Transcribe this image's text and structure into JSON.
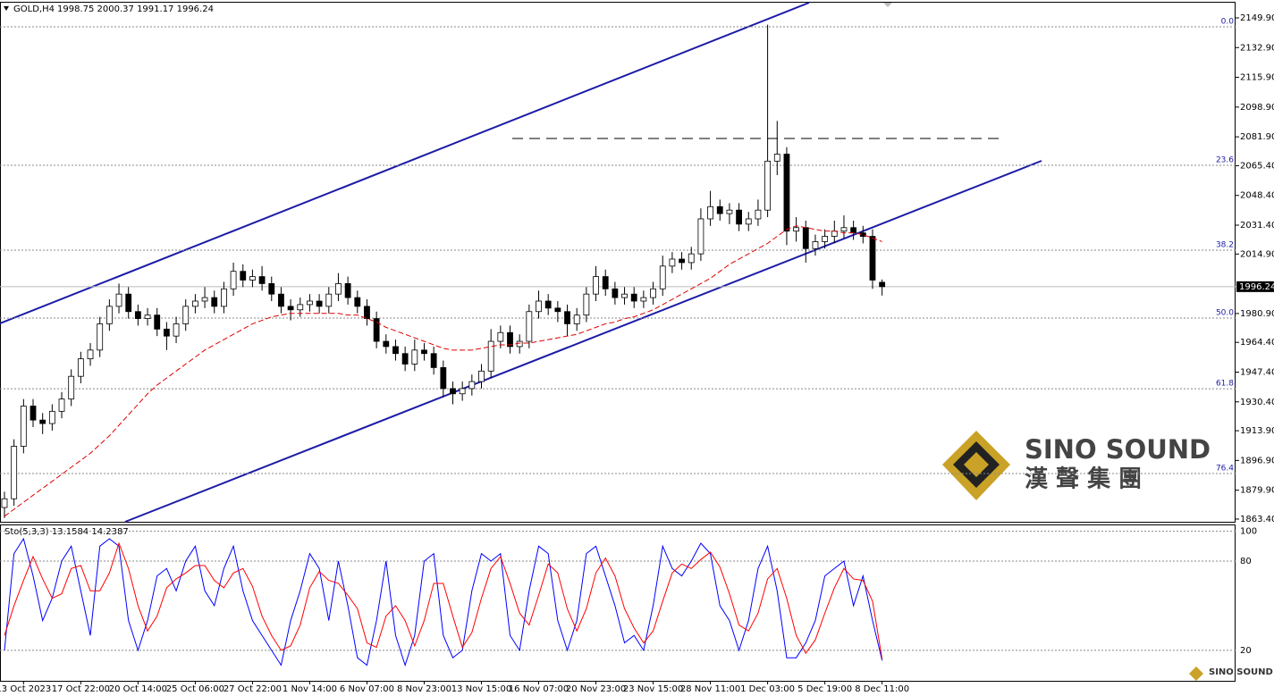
{
  "chart_data": [
    {
      "type": "candlestick",
      "title": "GOLD,H4",
      "subtitle": "1998.75 2000.37 1991.17 1996.24",
      "categories": [
        null,
        null,
        "13 Oct 2023",
        null,
        null,
        null,
        null,
        null,
        "17 Oct 22:00",
        null,
        null,
        null,
        null,
        null,
        "20 Oct 14:00",
        null,
        null,
        null,
        null,
        null,
        "25 Oct 06:00",
        null,
        null,
        null,
        null,
        null,
        "27 Oct 22:00",
        null,
        null,
        null,
        null,
        null,
        "1 Nov 14:00",
        null,
        null,
        null,
        null,
        null,
        "6 Nov 07:00",
        null,
        null,
        null,
        null,
        null,
        "8 Nov 23:00",
        null,
        null,
        null,
        null,
        null,
        "13 Nov 15:00",
        null,
        null,
        null,
        null,
        null,
        "16 Nov 07:00",
        null,
        null,
        null,
        null,
        null,
        "20 Nov 23:00",
        null,
        null,
        null,
        null,
        null,
        "23 Nov 15:00",
        null,
        null,
        null,
        null,
        null,
        "28 Nov 11:00",
        null,
        null,
        null,
        null,
        null,
        "1 Dec 03:00",
        null,
        null,
        null,
        null,
        null,
        "5 Dec 19:00",
        null,
        null,
        null,
        null,
        null,
        "8 Dec 11:00"
      ],
      "open": [
        1870,
        1875,
        1905,
        1928,
        1920,
        1918,
        1925,
        1932,
        1945,
        1955,
        1960,
        1975,
        1985,
        1992,
        1982,
        1978,
        1980,
        1972,
        1968,
        1975,
        1985,
        1988,
        1990,
        1985,
        1995,
        2005,
        2000,
        2002,
        1998,
        1992,
        1985,
        1983,
        1986,
        1988,
        1985,
        1992,
        1998,
        1990,
        1985,
        1978,
        1965,
        1962,
        1958,
        1952,
        1960,
        1958,
        1950,
        1938,
        1935,
        1938,
        1942,
        1948,
        1965,
        1970,
        1962,
        1965,
        1982,
        1988,
        1984,
        1982,
        1975,
        1980,
        1992,
        2002,
        1995,
        1990,
        1992,
        1988,
        1990,
        1995,
        2008,
        2012,
        2010,
        2015,
        2035,
        2042,
        2038,
        2040,
        2032,
        2035,
        2040,
        2068,
        2072,
        2028,
        2030,
        2018,
        2022,
        2025,
        2028,
        2030,
        2027,
        2025,
        1998.75
      ],
      "high": [
        1879,
        1909,
        1932,
        1932,
        1924,
        1929,
        1936,
        1949,
        1959,
        1964,
        1979,
        1989,
        1998,
        1996,
        1986,
        1984,
        1984,
        1976,
        1979,
        1989,
        1992,
        1996,
        1994,
        1999,
        2010,
        2009,
        2006,
        2008,
        2002,
        1996,
        1989,
        1990,
        1992,
        1992,
        1996,
        2004,
        2002,
        1994,
        1989,
        1982,
        1969,
        1966,
        1962,
        1966,
        1964,
        1962,
        1954,
        1942,
        1942,
        1946,
        1952,
        1972,
        1974,
        1974,
        1969,
        1986,
        1994,
        1992,
        1988,
        1986,
        1984,
        1996,
        2008,
        2006,
        1999,
        1996,
        1996,
        1994,
        1999,
        2014,
        2016,
        2016,
        2019,
        2041,
        2051,
        2046,
        2044,
        2044,
        2039,
        2046,
        2146,
        2091,
        2076,
        2036,
        2034,
        2026,
        2029,
        2034,
        2037,
        2034,
        2031,
        2029,
        2000.37
      ],
      "low": [
        1864,
        1871,
        1901,
        1916,
        1912,
        1914,
        1921,
        1928,
        1941,
        1951,
        1956,
        1971,
        1981,
        1978,
        1974,
        1974,
        1968,
        1960,
        1964,
        1971,
        1981,
        1984,
        1981,
        1981,
        1991,
        1996,
        1996,
        1994,
        1988,
        1981,
        1977,
        1979,
        1982,
        1981,
        1981,
        1988,
        1986,
        1981,
        1974,
        1961,
        1958,
        1954,
        1948,
        1948,
        1954,
        1946,
        1933,
        1929,
        1931,
        1934,
        1938,
        1944,
        1961,
        1958,
        1958,
        1961,
        1978,
        1980,
        1976,
        1968,
        1971,
        1976,
        1988,
        1991,
        1986,
        1986,
        1984,
        1984,
        1986,
        1991,
        2004,
        2006,
        2006,
        2011,
        2031,
        2034,
        2032,
        2028,
        2028,
        2031,
        2036,
        2060,
        2020,
        2022,
        2010,
        2014,
        2018,
        2021,
        2024,
        2023,
        2021,
        1995,
        1991.17
      ],
      "close": [
        1875,
        1905,
        1928,
        1920,
        1918,
        1925,
        1932,
        1945,
        1955,
        1960,
        1975,
        1985,
        1992,
        1982,
        1978,
        1980,
        1972,
        1968,
        1975,
        1985,
        1988,
        1990,
        1985,
        1995,
        2005,
        2000,
        2002,
        1998,
        1992,
        1985,
        1983,
        1986,
        1988,
        1985,
        1992,
        1998,
        1990,
        1985,
        1978,
        1965,
        1962,
        1958,
        1952,
        1960,
        1958,
        1950,
        1938,
        1935,
        1938,
        1942,
        1948,
        1965,
        1970,
        1962,
        1965,
        1982,
        1988,
        1984,
        1982,
        1975,
        1980,
        1992,
        2002,
        1995,
        1990,
        1992,
        1988,
        1990,
        1995,
        2008,
        2012,
        2010,
        2015,
        2035,
        2042,
        2038,
        2040,
        2032,
        2035,
        2040,
        2068,
        2072,
        2028,
        2030,
        2018,
        2022,
        2025,
        2028,
        2030,
        2027,
        2025,
        2000,
        1996.24
      ],
      "ma": {
        "color": "#dd0000",
        "values": [
          1865,
          1869,
          1873,
          1877,
          1881,
          1885,
          1889,
          1893,
          1897,
          1901,
          1906,
          1911,
          1917,
          1923,
          1929,
          1935,
          1940,
          1944,
          1948,
          1952,
          1956,
          1960,
          1963,
          1966,
          1969,
          1972,
          1975,
          1977,
          1979,
          1980,
          1981,
          1981,
          1981,
          1981,
          1981,
          1981,
          1980,
          1980,
          1978,
          1976,
          1973,
          1971,
          1969,
          1967,
          1965,
          1963,
          1961,
          1960,
          1960,
          1960,
          1961,
          1962,
          1963,
          1963,
          1964,
          1964,
          1965,
          1966,
          1967,
          1968,
          1969,
          1971,
          1973,
          1975,
          1976,
          1978,
          1979,
          1981,
          1983,
          1986,
          1989,
          1992,
          1995,
          1998,
          2001,
          2005,
          2009,
          2012,
          2015,
          2018,
          2021,
          2025,
          2029,
          2031,
          2030,
          2029,
          2028,
          2028,
          2027,
          2027,
          2026,
          2024,
          2022
        ]
      },
      "ylim": [
        1861.85,
        2158.58
      ],
      "yticks": [
        {
          "value": 2149.9,
          "label": "2149.90"
        },
        {
          "value": 2132.9,
          "label": "2132.90"
        },
        {
          "value": 2115.9,
          "label": "2115.90"
        },
        {
          "value": 2098.9,
          "label": "2098.90"
        },
        {
          "value": 2081.9,
          "label": "2081.90"
        },
        {
          "value": 2065.4,
          "label": "2065.40"
        },
        {
          "value": 2048.4,
          "label": "2048.40"
        },
        {
          "value": 2031.4,
          "label": "2031.40"
        },
        {
          "value": 2014.9,
          "label": "2014.90"
        },
        {
          "value": 1980.9,
          "label": "1980.90"
        },
        {
          "value": 1964.4,
          "label": "1964.40"
        },
        {
          "value": 1947.4,
          "label": "1947.40"
        },
        {
          "value": 1930.4,
          "label": "1930.40"
        },
        {
          "value": 1913.9,
          "label": "1913.90"
        },
        {
          "value": 1896.9,
          "label": "1896.90"
        },
        {
          "value": 1879.9,
          "label": "1879.90"
        },
        {
          "value": 1863.4,
          "label": "1863.40"
        }
      ],
      "fib_levels": [
        {
          "label": "0.0",
          "value": 2144.8
        },
        {
          "label": "23.6",
          "value": 2065.6
        },
        {
          "label": "38.2",
          "value": 2017.1
        },
        {
          "label": "50.0",
          "value": 1978.3
        },
        {
          "label": "61.8",
          "value": 1937.9
        },
        {
          "label": "76.4",
          "value": 1889.4
        }
      ],
      "up_color": "#ffffff",
      "down_color": "#000000"
    },
    {
      "type": "line",
      "title": "Sto(5,3,3) 13.1584 14.2387",
      "series": [
        {
          "color": "#0000ff",
          "values": [
            20,
            85,
            95,
            70,
            40,
            55,
            80,
            90,
            60,
            30,
            90,
            95,
            90,
            40,
            20,
            40,
            70,
            75,
            60,
            80,
            90,
            60,
            50,
            75,
            90,
            60,
            40,
            30,
            20,
            10,
            40,
            60,
            85,
            75,
            40,
            80,
            50,
            15,
            10,
            40,
            80,
            30,
            10,
            30,
            80,
            85,
            30,
            15,
            20,
            60,
            85,
            80,
            85,
            30,
            20,
            60,
            90,
            85,
            40,
            20,
            40,
            85,
            90,
            70,
            50,
            25,
            30,
            20,
            50,
            90,
            75,
            70,
            80,
            92,
            85,
            50,
            40,
            20,
            40,
            75,
            90,
            60,
            15,
            15,
            25,
            40,
            70,
            75,
            80,
            50,
            70,
            40,
            13.1584
          ]
        },
        {
          "color": "#ff0000",
          "values": [
            30,
            50,
            67,
            83,
            68,
            55,
            58,
            75,
            77,
            60,
            60,
            72,
            92,
            75,
            50,
            33,
            43,
            62,
            68,
            72,
            77,
            77,
            67,
            62,
            72,
            75,
            63,
            43,
            30,
            20,
            23,
            37,
            62,
            73,
            67,
            65,
            57,
            48,
            25,
            22,
            43,
            50,
            40,
            23,
            40,
            65,
            65,
            43,
            22,
            32,
            55,
            75,
            83,
            65,
            45,
            37,
            57,
            78,
            72,
            48,
            33,
            48,
            72,
            82,
            70,
            48,
            35,
            25,
            33,
            53,
            72,
            78,
            75,
            81,
            86,
            76,
            58,
            37,
            33,
            45,
            68,
            75,
            55,
            30,
            18,
            27,
            45,
            62,
            75,
            68,
            67,
            53,
            14.2387
          ]
        }
      ],
      "ylim": [
        -0.5,
        104
      ],
      "yticks": [
        100,
        80,
        20
      ],
      "grid": true
    }
  ],
  "watermark": {
    "brand": "SINO SOUND",
    "chinese": "漢 聲 集 團"
  },
  "footer_logo": "SINO SOUND"
}
